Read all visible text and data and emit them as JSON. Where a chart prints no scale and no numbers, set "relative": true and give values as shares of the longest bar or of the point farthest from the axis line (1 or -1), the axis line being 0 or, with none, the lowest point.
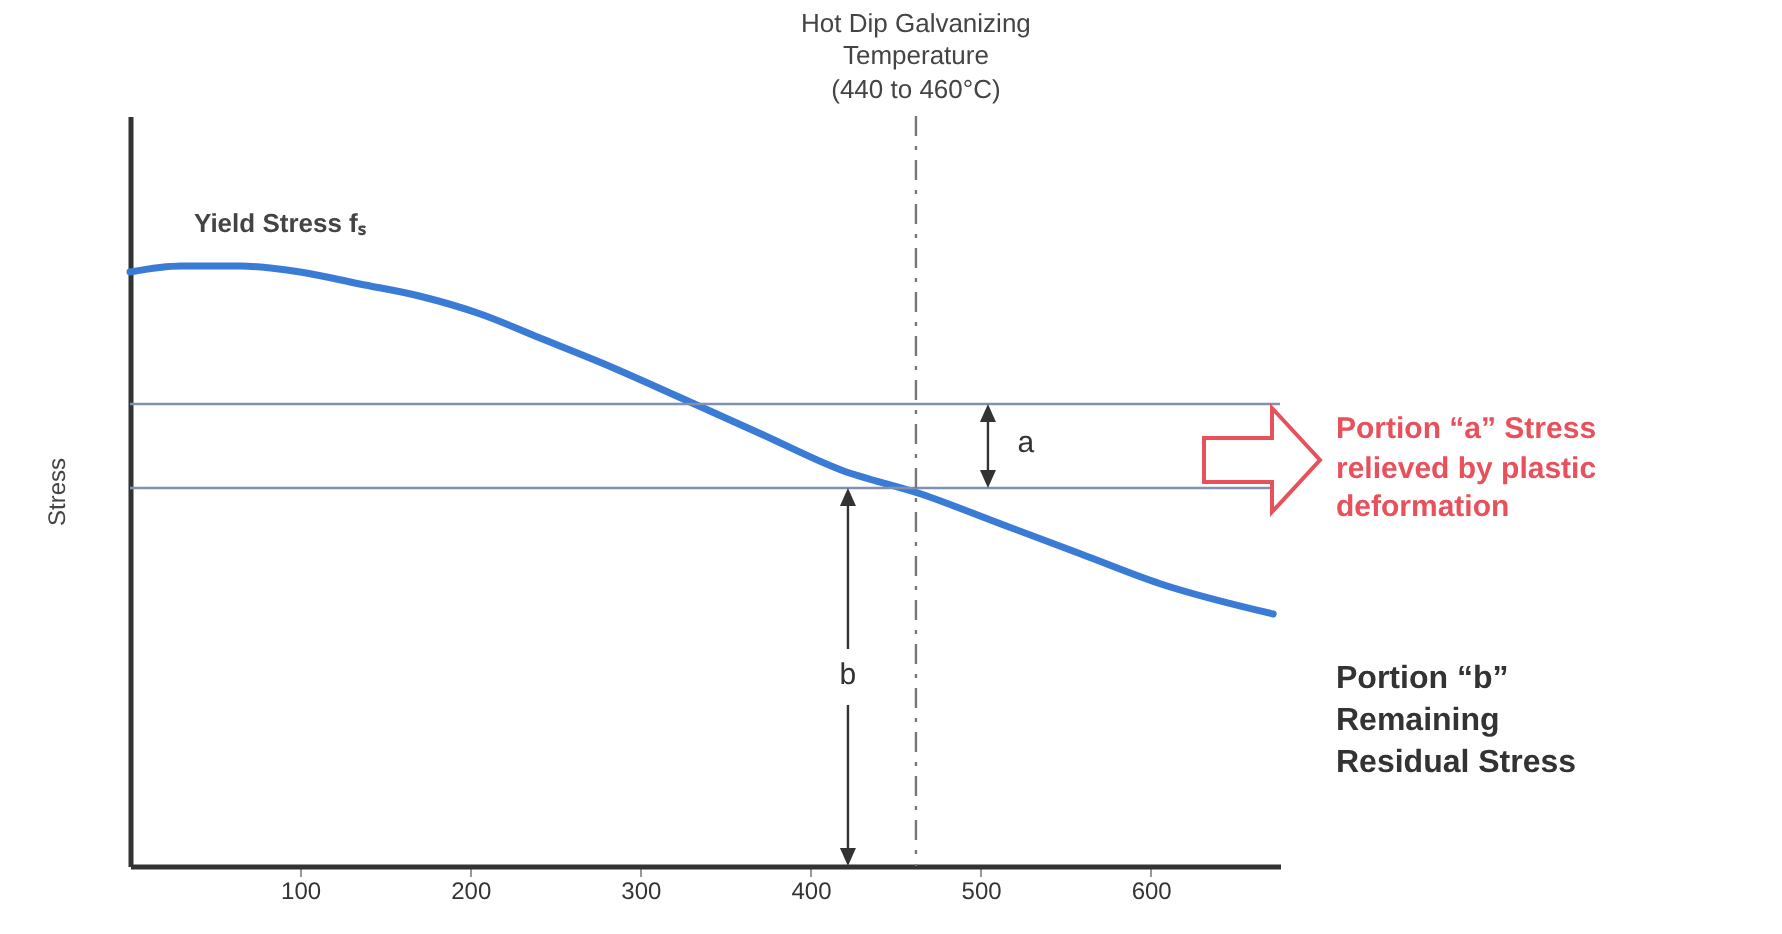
{
  "chart_data": {
    "type": "line",
    "relative": true,
    "ylabel": "Stress",
    "xlim": [
      0,
      676
    ],
    "xticks": [
      100,
      200,
      300,
      400,
      500,
      600
    ],
    "grid": false,
    "x": [
      0,
      30,
      65,
      100,
      135,
      170,
      206,
      241,
      276,
      324,
      371,
      418,
      465,
      512,
      559,
      606,
      672
    ],
    "series": [
      {
        "name": "Yield Stress fₛ",
        "color": "#3a7bd5",
        "values": [
          0.99,
          1,
          1,
          0.99,
          0.97,
          0.95,
          0.92,
          0.88,
          0.84,
          0.78,
          0.72,
          0.66,
          0.62,
          0.57,
          0.52,
          0.47,
          0.42
        ]
      }
    ],
    "ref_lines": [
      {
        "axis": "y",
        "value": 0.77,
        "color": "#8090b0"
      },
      {
        "axis": "y",
        "value": 0.63,
        "color": "#8090b0"
      },
      {
        "axis": "x",
        "value": 462,
        "label": "Hot Dip Galvanizing Temperature (440 to 460°C)",
        "line_style": "dashed",
        "color": "#777777"
      }
    ],
    "annotations": [
      "a",
      "b",
      "Portion “a” Stress relieved by plastic deformation",
      "Portion “b” Remaining Residual Stress"
    ]
  }
}
